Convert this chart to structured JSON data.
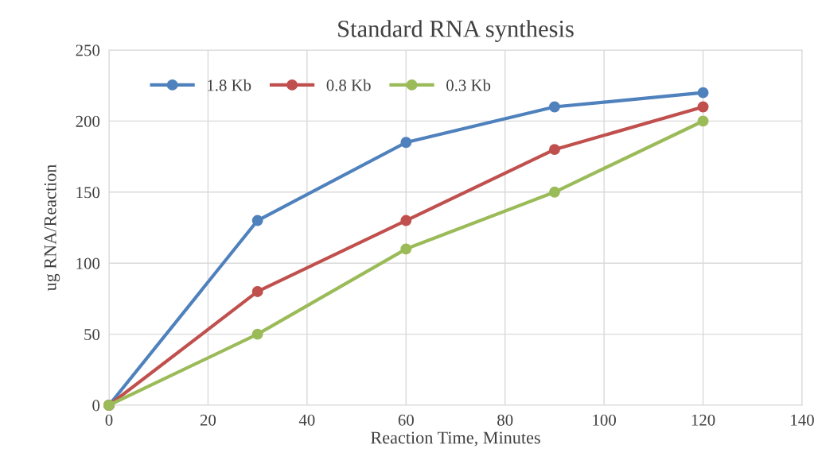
{
  "chart_data": {
    "type": "line",
    "title": "Standard RNA synthesis",
    "xlabel": "Reaction Time, Minutes",
    "ylabel": "ug RNA/Reaction",
    "x": [
      0,
      30,
      60,
      90,
      120
    ],
    "series": [
      {
        "name": "1.8 Kb",
        "color": "#4f81bd",
        "values": [
          0,
          130,
          185,
          210,
          220
        ]
      },
      {
        "name": "0.8 Kb",
        "color": "#c0504d",
        "values": [
          0,
          80,
          130,
          180,
          210
        ]
      },
      {
        "name": "0.3 Kb",
        "color": "#9bbb59",
        "values": [
          0,
          50,
          110,
          150,
          200
        ]
      }
    ],
    "xlim": [
      0,
      140
    ],
    "xticks": [
      0,
      20,
      40,
      60,
      80,
      100,
      120,
      140
    ],
    "ylim": [
      0,
      250
    ],
    "yticks": [
      0,
      50,
      100,
      150,
      200,
      250
    ],
    "grid": true,
    "legend": "top left",
    "marker": "circle",
    "line_style": "solid"
  }
}
